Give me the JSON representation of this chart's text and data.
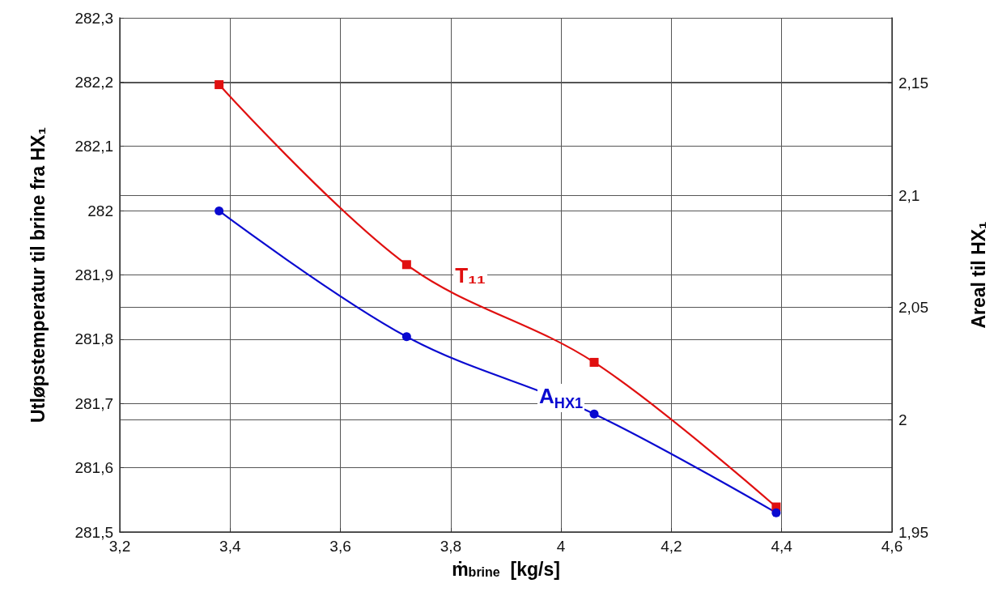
{
  "chart_data": {
    "type": "line",
    "xlabel": "ṁ$_{brine}$  [kg/s]",
    "ylabel": "Utløpstemperatur til brine fra HX₁",
    "y2label": "Areal til HX₁",
    "x": [
      3.38,
      3.72,
      4.06,
      4.39
    ],
    "series": [
      {
        "name": "T₁₁",
        "color": "#e01010",
        "marker": "square",
        "values": [
          282.196,
          281.916,
          281.764,
          281.539
        ]
      },
      {
        "name": "A$_{HX1}$",
        "color": "#0a0ad0",
        "marker": "circle",
        "axis": "y2",
        "values": [
          2.093,
          2.037,
          2.0026,
          1.9586
        ]
      }
    ],
    "xlim": [
      3.2,
      4.6
    ],
    "xticks": [
      {
        "value": 3.2,
        "label": "3,2"
      },
      {
        "value": 3.4,
        "label": "3,4"
      },
      {
        "value": 3.6,
        "label": "3,6"
      },
      {
        "value": 3.8,
        "label": "3,8"
      },
      4,
      {
        "value": 4.2,
        "label": "4,2"
      },
      {
        "value": 4.4,
        "label": "4,4"
      },
      {
        "value": 4.6,
        "label": "4,6"
      }
    ],
    "ylim": [
      281.5,
      282.3
    ],
    "yticks": [
      {
        "value": 281.5,
        "label": "281,5"
      },
      {
        "value": 281.6,
        "label": "281,6"
      },
      {
        "value": 281.7,
        "label": "281,7"
      },
      {
        "value": 281.8,
        "label": "281,8"
      },
      {
        "value": 281.9,
        "label": "281,9"
      },
      282,
      {
        "value": 282.1,
        "label": "282,1"
      },
      {
        "value": 282.2,
        "label": "282,2"
      },
      {
        "value": 282.3,
        "label": "282,3"
      }
    ],
    "y2lim": [
      1.95,
      2.179
    ],
    "y2ticks": [
      {
        "value": 1.95,
        "label": "1,95"
      },
      2,
      {
        "value": 2.05,
        "label": "2,05"
      },
      {
        "value": 2.1,
        "label": "2,1"
      },
      {
        "value": 2.15,
        "label": "2,15"
      }
    ],
    "grid": true,
    "legend": false,
    "line_style": "solid"
  }
}
